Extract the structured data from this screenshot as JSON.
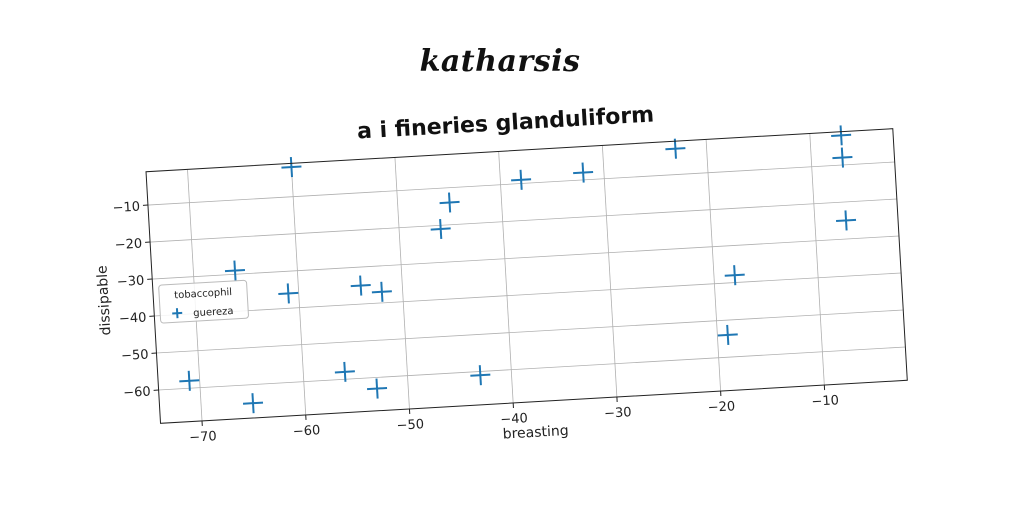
{
  "suptitle": "katharsis",
  "chart_data": {
    "type": "scatter",
    "title": "a i fineries glanduliform",
    "xlabel": "breasting",
    "ylabel": "dissipable",
    "xlim": [
      -74,
      -2
    ],
    "ylim": [
      -69,
      -1
    ],
    "xticks": [
      -70,
      -60,
      -50,
      -40,
      -30,
      -20,
      -10
    ],
    "yticks": [
      -10,
      -20,
      -30,
      -40,
      -50,
      -60
    ],
    "grid": true,
    "color": "#1f77b4",
    "marker": "plus",
    "legend": {
      "title": "tobaccophil",
      "placement": "center-left"
    },
    "series": [
      {
        "name": "guereza",
        "points": [
          [
            -60,
            -2
          ],
          [
            -45,
            -14
          ],
          [
            -46,
            -21
          ],
          [
            -38,
            -9
          ],
          [
            -32,
            -8
          ],
          [
            -23,
            -3
          ],
          [
            -7,
            -2
          ],
          [
            -7,
            -8
          ],
          [
            -7,
            -25
          ],
          [
            -66,
            -29
          ],
          [
            -61,
            -36
          ],
          [
            -54,
            -35
          ],
          [
            -52,
            -37
          ],
          [
            -18,
            -38
          ],
          [
            -19,
            -54
          ],
          [
            -71,
            -58
          ],
          [
            -56,
            -58
          ],
          [
            -53,
            -63
          ],
          [
            -43,
            -61
          ],
          [
            -65,
            -65
          ]
        ]
      }
    ]
  }
}
